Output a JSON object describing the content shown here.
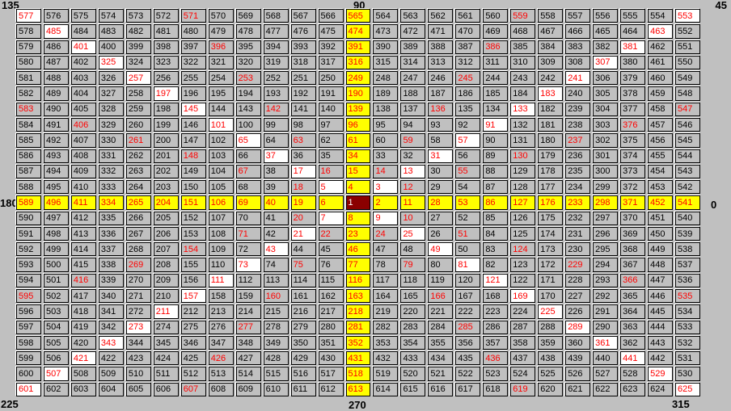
{
  "labels": {
    "top_left": "135",
    "top_center": "90",
    "top_right": "45",
    "mid_left": "180",
    "mid_right": "0",
    "bottom_left": "225",
    "bottom_center": "270",
    "bottom_right": "315"
  },
  "colors": {
    "background": "#c0c0c0",
    "cell_gray": "#c0c0c0",
    "cell_yellow": "#ffff00",
    "cell_white": "#ffffff",
    "cell_center": "#8b0000",
    "text_black": "#000000",
    "text_red": "#ff0000",
    "text_center": "#ffffff",
    "cell_border": "#000000",
    "cell_highlight": "#ffffff"
  },
  "grid": {
    "size": 25,
    "center_value": 1,
    "style_codes": {
      "g": "cell",
      "r": "cell ray-red",
      "y": "cell ray-yellow",
      "w": "cell ray-white",
      "c": "cell center"
    },
    "rows": [
      [
        577,
        576,
        575,
        574,
        573,
        572,
        571,
        570,
        569,
        568,
        567,
        566,
        565,
        564,
        563,
        562,
        561,
        560,
        559,
        558,
        557,
        556,
        555,
        554,
        553
      ],
      [
        578,
        485,
        484,
        483,
        482,
        481,
        480,
        479,
        478,
        477,
        476,
        475,
        474,
        473,
        472,
        471,
        470,
        469,
        468,
        467,
        466,
        465,
        464,
        463,
        552
      ],
      [
        579,
        486,
        401,
        400,
        399,
        398,
        397,
        396,
        395,
        394,
        393,
        392,
        391,
        390,
        389,
        388,
        387,
        386,
        385,
        384,
        383,
        382,
        381,
        462,
        551
      ],
      [
        580,
        487,
        402,
        325,
        324,
        323,
        322,
        321,
        320,
        319,
        318,
        317,
        316,
        315,
        314,
        313,
        312,
        311,
        310,
        309,
        308,
        307,
        380,
        461,
        550
      ],
      [
        581,
        488,
        403,
        326,
        257,
        256,
        255,
        254,
        253,
        252,
        251,
        250,
        249,
        248,
        247,
        246,
        245,
        244,
        243,
        242,
        241,
        306,
        379,
        460,
        549
      ],
      [
        582,
        489,
        404,
        327,
        258,
        197,
        196,
        195,
        194,
        193,
        192,
        191,
        190,
        189,
        188,
        187,
        186,
        185,
        184,
        183,
        240,
        305,
        378,
        459,
        548
      ],
      [
        583,
        490,
        405,
        328,
        259,
        198,
        145,
        144,
        143,
        142,
        141,
        140,
        139,
        138,
        137,
        136,
        135,
        134,
        133,
        182,
        239,
        304,
        377,
        458,
        547
      ],
      [
        584,
        491,
        406,
        329,
        260,
        199,
        146,
        101,
        100,
        99,
        98,
        97,
        96,
        95,
        94,
        93,
        92,
        91,
        132,
        181,
        238,
        303,
        376,
        457,
        546
      ],
      [
        585,
        492,
        407,
        330,
        261,
        200,
        147,
        102,
        65,
        64,
        63,
        62,
        61,
        60,
        59,
        58,
        57,
        90,
        131,
        180,
        237,
        302,
        375,
        456,
        545
      ],
      [
        586,
        493,
        408,
        331,
        262,
        201,
        148,
        103,
        66,
        37,
        36,
        35,
        34,
        33,
        32,
        31,
        56,
        89,
        130,
        179,
        236,
        301,
        374,
        455,
        544
      ],
      [
        587,
        494,
        409,
        332,
        263,
        202,
        149,
        104,
        67,
        38,
        17,
        16,
        15,
        14,
        13,
        30,
        55,
        88,
        129,
        178,
        235,
        300,
        373,
        454,
        543
      ],
      [
        588,
        495,
        410,
        333,
        264,
        203,
        150,
        105,
        68,
        39,
        18,
        5,
        4,
        3,
        12,
        29,
        54,
        87,
        128,
        177,
        234,
        299,
        372,
        453,
        542
      ],
      [
        589,
        496,
        411,
        334,
        265,
        204,
        151,
        106,
        69,
        40,
        19,
        6,
        1,
        2,
        11,
        28,
        53,
        86,
        127,
        176,
        233,
        298,
        371,
        452,
        541
      ],
      [
        590,
        497,
        412,
        335,
        266,
        205,
        152,
        107,
        70,
        41,
        20,
        7,
        8,
        9,
        10,
        27,
        52,
        85,
        126,
        175,
        232,
        297,
        370,
        451,
        540
      ],
      [
        591,
        498,
        413,
        336,
        267,
        206,
        153,
        108,
        71,
        42,
        21,
        22,
        23,
        24,
        25,
        26,
        51,
        84,
        125,
        174,
        231,
        296,
        369,
        450,
        539
      ],
      [
        592,
        499,
        414,
        337,
        268,
        207,
        154,
        109,
        72,
        43,
        44,
        45,
        46,
        47,
        48,
        49,
        50,
        83,
        124,
        173,
        230,
        295,
        368,
        449,
        538
      ],
      [
        593,
        500,
        415,
        338,
        269,
        208,
        155,
        110,
        73,
        74,
        75,
        76,
        77,
        78,
        79,
        80,
        81,
        82,
        123,
        172,
        229,
        294,
        367,
        448,
        537
      ],
      [
        594,
        501,
        416,
        339,
        270,
        209,
        156,
        111,
        112,
        113,
        114,
        115,
        116,
        117,
        118,
        119,
        120,
        121,
        122,
        171,
        228,
        293,
        366,
        447,
        536
      ],
      [
        595,
        502,
        417,
        340,
        271,
        210,
        157,
        158,
        159,
        160,
        161,
        162,
        163,
        164,
        165,
        166,
        167,
        168,
        169,
        170,
        227,
        292,
        365,
        446,
        535
      ],
      [
        596,
        503,
        418,
        341,
        272,
        211,
        212,
        213,
        214,
        215,
        216,
        217,
        218,
        219,
        220,
        221,
        222,
        223,
        224,
        225,
        226,
        291,
        364,
        445,
        534
      ],
      [
        597,
        504,
        419,
        342,
        273,
        274,
        275,
        276,
        277,
        278,
        279,
        280,
        281,
        282,
        283,
        284,
        285,
        286,
        287,
        288,
        289,
        290,
        363,
        444,
        533
      ],
      [
        598,
        505,
        420,
        343,
        344,
        345,
        346,
        347,
        348,
        349,
        350,
        351,
        352,
        353,
        354,
        355,
        356,
        357,
        358,
        359,
        360,
        361,
        362,
        443,
        532
      ],
      [
        599,
        506,
        421,
        422,
        423,
        424,
        425,
        426,
        427,
        428,
        429,
        430,
        431,
        432,
        433,
        434,
        435,
        436,
        437,
        438,
        439,
        440,
        441,
        442,
        531
      ],
      [
        600,
        507,
        508,
        509,
        510,
        511,
        512,
        513,
        514,
        515,
        516,
        517,
        518,
        519,
        520,
        521,
        522,
        523,
        524,
        525,
        526,
        527,
        528,
        529,
        530
      ],
      [
        601,
        602,
        603,
        604,
        605,
        606,
        607,
        608,
        609,
        610,
        611,
        612,
        613,
        614,
        615,
        616,
        617,
        618,
        619,
        620,
        621,
        622,
        623,
        624,
        625
      ]
    ],
    "cell_styles": [
      "wgggggrgggggygggggrgggggw",
      "gwggggggggggyggggggggggwg",
      "ggwggggrggggyggggrggggwgg",
      "gggwggggggggyggggggggwggg",
      "ggggwgggrgggygggrgggwgggg",
      "gggggwggggggyggggggwggggg",
      "rgggggwggrggyggrggwgggggr",
      "ggrggggwggggyggggwggggrgg",
      "ggggrgggwgrgygrgwgggrgggg",
      "ggggggrggwggyggwggrgggggg",
      "ggggggggrgwryrwgrgggggggg",
      "ggggggggggrwywrgggggggggg",
      "yyyyyyyyyyyycyyyyyyyyyyyy",
      "ggggggggggrwywrgggggggggg",
      "ggggggggrgwryrwgrgggggggg",
      "ggggggrggwggyggwggrgggggg",
      "ggggrgggwgrgygrgwgggrgggg",
      "ggrggggwggggyggggwggggrgg",
      "rgggggwggrggyggrggwgggggr",
      "gggggwggggggyggggggwggggg",
      "ggggwgggrgggygggrgggwgggg",
      "gggwggggggggyggggggggwggg",
      "ggwggggrggggyggggrggggwgg",
      "gwggggggggggyggggggggggwg",
      "wgggggrgggggygggggrgggggw"
    ]
  }
}
